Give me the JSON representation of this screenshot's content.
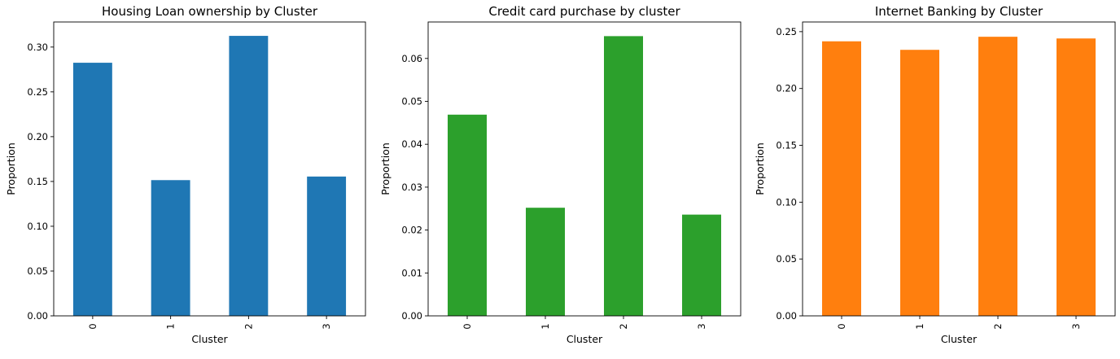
{
  "chart_data": [
    {
      "type": "bar",
      "title": "Housing Loan ownership by Cluster",
      "xlabel": "Cluster",
      "ylabel": "Proportion",
      "categories": [
        "0",
        "1",
        "2",
        "3"
      ],
      "values": [
        0.2825,
        0.1515,
        0.3125,
        0.1555
      ],
      "ylim": [
        0,
        0.328
      ],
      "yticks": [
        0.0,
        0.05,
        0.1,
        0.15,
        0.2,
        0.25,
        0.3
      ],
      "ytick_labels": [
        "0.00",
        "0.05",
        "0.10",
        "0.15",
        "0.20",
        "0.25",
        "0.30"
      ],
      "color": "#1f77b4",
      "grid": false,
      "legend": "none"
    },
    {
      "type": "bar",
      "title": "Credit card purchase by cluster",
      "xlabel": "Cluster",
      "ylabel": "Proportion",
      "categories": [
        "0",
        "1",
        "2",
        "3"
      ],
      "values": [
        0.0469,
        0.0252,
        0.0652,
        0.0236
      ],
      "ylim": [
        0,
        0.0685
      ],
      "yticks": [
        0.0,
        0.01,
        0.02,
        0.03,
        0.04,
        0.05,
        0.06
      ],
      "ytick_labels": [
        "0.00",
        "0.01",
        "0.02",
        "0.03",
        "0.04",
        "0.05",
        "0.06"
      ],
      "color": "#2ca02c",
      "grid": false,
      "legend": "none"
    },
    {
      "type": "bar",
      "title": "Internet Banking by Cluster",
      "xlabel": "Cluster",
      "ylabel": "Proportion",
      "categories": [
        "0",
        "1",
        "2",
        "3"
      ],
      "values": [
        0.2415,
        0.234,
        0.2455,
        0.244
      ],
      "ylim": [
        0,
        0.2585
      ],
      "yticks": [
        0.0,
        0.05,
        0.1,
        0.15,
        0.2,
        0.25
      ],
      "ytick_labels": [
        "0.00",
        "0.05",
        "0.10",
        "0.15",
        "0.20",
        "0.25"
      ],
      "color": "#ff7f0e",
      "grid": false,
      "legend": "none"
    }
  ]
}
